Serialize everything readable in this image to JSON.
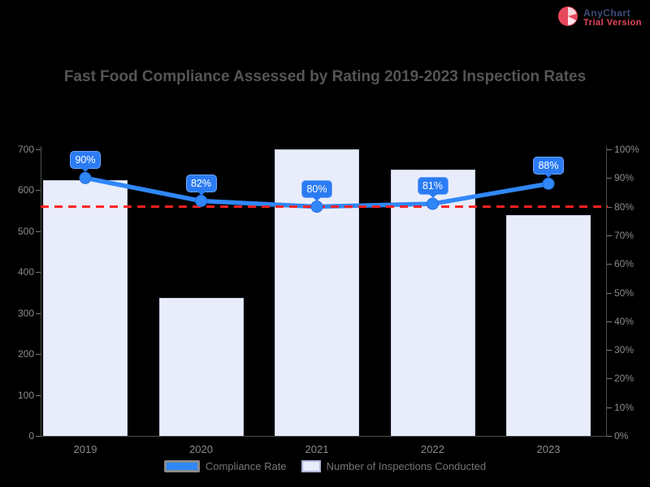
{
  "watermark": {
    "line1": "AnyChart",
    "line2": "Trial Version",
    "icon": "pie-logo",
    "icon_color": "#e8485c"
  },
  "chart_data": {
    "type": "combo",
    "title": "Fast Food Compliance Assessed by Rating 2019-2023 Inspection Rates",
    "background": "#000000",
    "grid": false,
    "categories": [
      "2019",
      "2020",
      "2021",
      "2022",
      "2023"
    ],
    "series": [
      {
        "name": "Compliance Rate",
        "type": "line",
        "axis": "right",
        "color": "#3087f8",
        "values": [
          90,
          82,
          80,
          81,
          88
        ],
        "labels": [
          "90%",
          "82%",
          "80%",
          "81%",
          "88%"
        ]
      },
      {
        "name": "Number of Inspections Conducted",
        "type": "bar",
        "axis": "left",
        "color": "#e9edfb",
        "values": [
          625,
          338,
          700,
          650,
          540
        ]
      }
    ],
    "target_line": {
      "value": 80,
      "axis": "right",
      "color": "#ff2020",
      "style": "dashed"
    },
    "axes": {
      "left": {
        "min": 0,
        "max": 700,
        "step": 100,
        "tick_labels": [
          "0",
          "100",
          "200",
          "300",
          "400",
          "500",
          "600",
          "700"
        ]
      },
      "right": {
        "min": 0,
        "max": 100,
        "step": 10,
        "suffix": "%",
        "tick_labels": [
          "0%",
          "10%",
          "20%",
          "30%",
          "40%",
          "50%",
          "60%",
          "70%",
          "80%",
          "90%",
          "100%"
        ]
      }
    },
    "legend_position": "bottom"
  }
}
